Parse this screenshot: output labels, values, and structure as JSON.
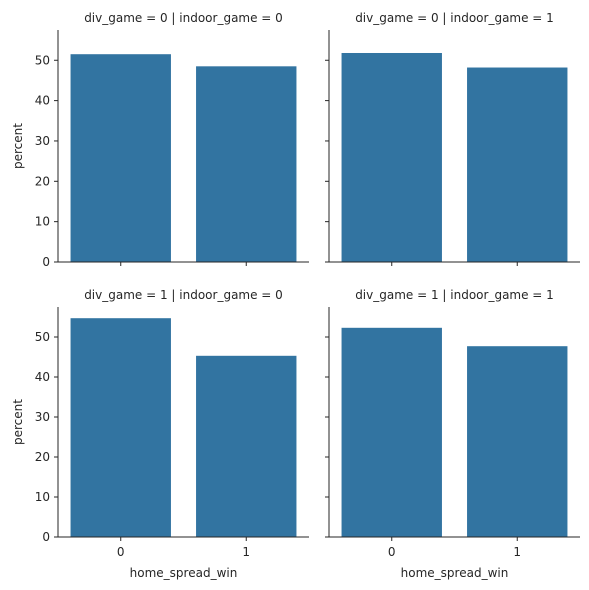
{
  "chart_data": {
    "type": "bar",
    "layout": "facet-grid-2x2",
    "shared_x": true,
    "shared_y": true,
    "xlabel": "home_spread_win",
    "ylabel": "percent",
    "categories": [
      "0",
      "1"
    ],
    "ylim": [
      0,
      57.5
    ],
    "yticks": [
      0,
      10,
      20,
      30,
      40,
      50
    ],
    "bar_color": "#3274a1",
    "grid": false,
    "facets": [
      {
        "title": "div_game = 0 | indoor_game = 0",
        "values": [
          51.5,
          48.5
        ]
      },
      {
        "title": "div_game = 0 | indoor_game = 1",
        "values": [
          51.8,
          48.2
        ]
      },
      {
        "title": "div_game = 1 | indoor_game = 0",
        "values": [
          54.7,
          45.3
        ]
      },
      {
        "title": "div_game = 1 | indoor_game = 1",
        "values": [
          52.3,
          47.7
        ]
      }
    ]
  }
}
